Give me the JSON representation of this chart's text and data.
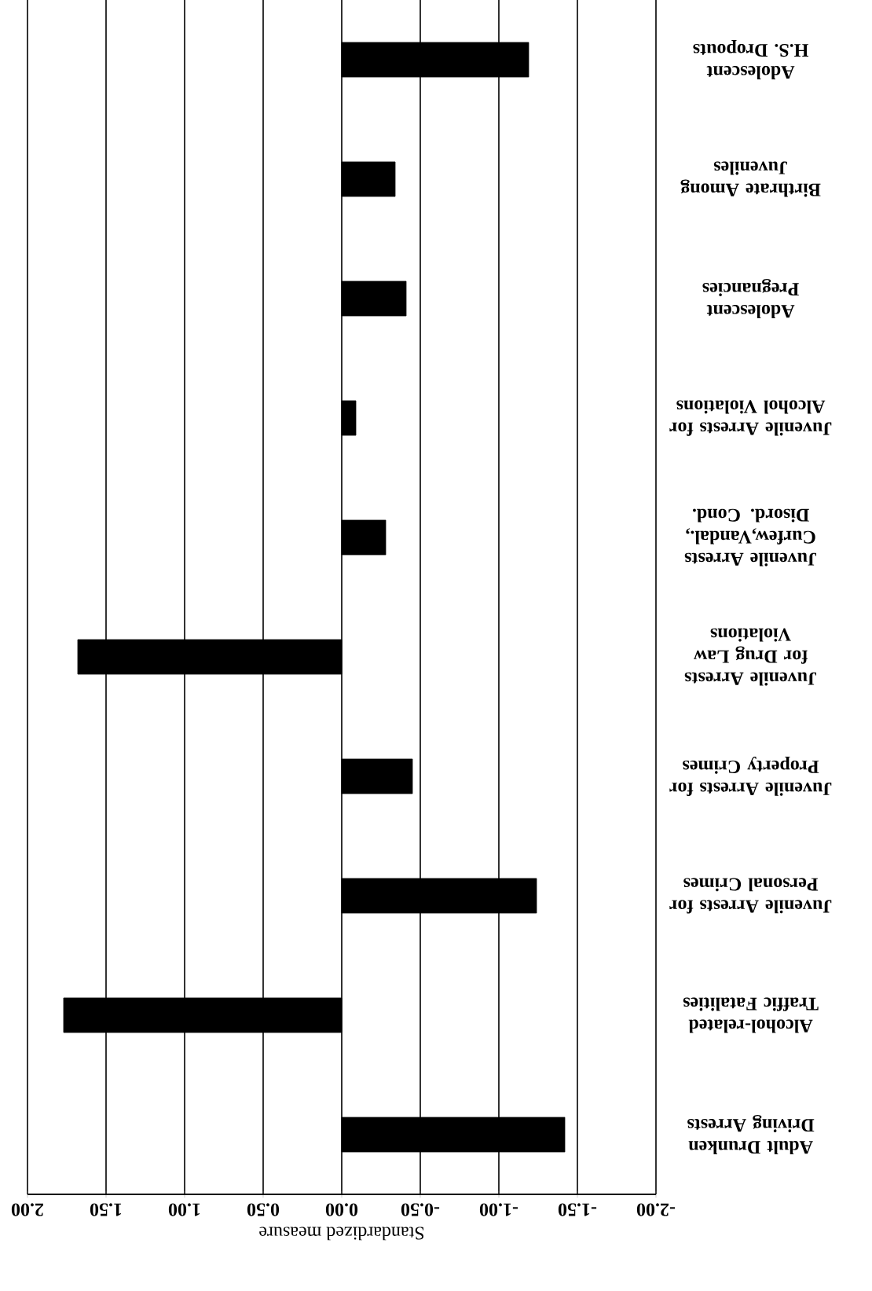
{
  "chart_data": {
    "type": "bar",
    "orientation": "horizontal",
    "xlabel": "Standardized measure",
    "categories": [
      "Adolescent H.S. Dropouts",
      "Birthrate Among Juveniles",
      "Adolescent Pregnancies",
      "Juvenile Arrests for Alcohol Violations",
      "Juvenile Arrests Curfew,Vandal., Disord. Cond.",
      "Juvenile Arrests for Drug Law Violations",
      "Juvenile Arrests for Property Crimes",
      "Juvenile Arrests for Personal Crimes",
      "Alcohol-related Traffic Fatalities",
      "Adult Drunken Driving Arrests"
    ],
    "values": [
      -1.19,
      -0.34,
      -0.41,
      -0.09,
      -0.28,
      1.68,
      -0.45,
      -1.24,
      1.77,
      -1.42
    ],
    "color": "#000000",
    "xlim": [
      2,
      -2
    ],
    "xticks": [
      {
        "value": 2,
        "label": "2.00"
      },
      {
        "value": 1.5,
        "label": "1.50"
      },
      {
        "value": 1,
        "label": "1.00"
      },
      {
        "value": 0.5,
        "label": "0.50"
      },
      {
        "value": 0,
        "label": "0.00"
      },
      {
        "value": -0.5,
        "label": "-0.50"
      },
      {
        "value": -1,
        "label": "-1.00"
      },
      {
        "value": -1.5,
        "label": "-1.50"
      },
      {
        "value": -2,
        "label": "-2.00"
      }
    ],
    "grid": "x"
  }
}
